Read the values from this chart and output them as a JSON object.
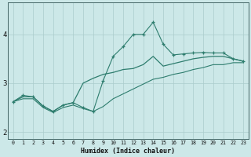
{
  "xlabel": "Humidex (Indice chaleur)",
  "ylabel": "",
  "bg_color": "#cce8e8",
  "line_color": "#2e7d6e",
  "grid_color": "#aacccc",
  "xlim": [
    -0.5,
    23.5
  ],
  "ylim": [
    1.85,
    4.65
  ],
  "xticks": [
    0,
    1,
    2,
    3,
    4,
    5,
    6,
    7,
    8,
    9,
    10,
    11,
    12,
    13,
    14,
    15,
    16,
    17,
    18,
    19,
    20,
    21,
    22,
    23
  ],
  "yticks": [
    2,
    3,
    4
  ],
  "line_spiky": {
    "x": [
      0,
      1,
      2,
      3,
      4,
      5,
      6,
      7,
      8,
      9,
      10,
      11,
      12,
      13,
      14,
      15,
      16,
      17,
      18,
      19,
      20,
      21,
      22,
      23
    ],
    "y": [
      2.62,
      2.75,
      2.72,
      2.53,
      2.42,
      2.55,
      2.6,
      2.5,
      2.42,
      3.05,
      3.55,
      3.75,
      4.0,
      4.0,
      4.25,
      3.8,
      3.58,
      3.6,
      3.62,
      3.63,
      3.62,
      3.62,
      3.5,
      3.45
    ]
  },
  "line_upper": {
    "x": [
      0,
      1,
      2,
      3,
      4,
      5,
      6,
      7,
      8,
      9,
      10,
      11,
      12,
      13,
      14,
      15,
      16,
      17,
      18,
      19,
      20,
      21,
      22,
      23
    ],
    "y": [
      2.62,
      2.72,
      2.72,
      2.53,
      2.42,
      2.55,
      2.6,
      3.0,
      3.1,
      3.18,
      3.22,
      3.28,
      3.3,
      3.38,
      3.55,
      3.35,
      3.4,
      3.45,
      3.5,
      3.53,
      3.55,
      3.55,
      3.5,
      3.45
    ]
  },
  "line_lower": {
    "x": [
      0,
      1,
      2,
      3,
      4,
      5,
      6,
      7,
      8,
      9,
      10,
      11,
      12,
      13,
      14,
      15,
      16,
      17,
      18,
      19,
      20,
      21,
      22,
      23
    ],
    "y": [
      2.62,
      2.68,
      2.68,
      2.5,
      2.4,
      2.5,
      2.55,
      2.48,
      2.42,
      2.52,
      2.68,
      2.78,
      2.88,
      2.98,
      3.08,
      3.12,
      3.18,
      3.22,
      3.28,
      3.32,
      3.38,
      3.38,
      3.42,
      3.42
    ]
  }
}
